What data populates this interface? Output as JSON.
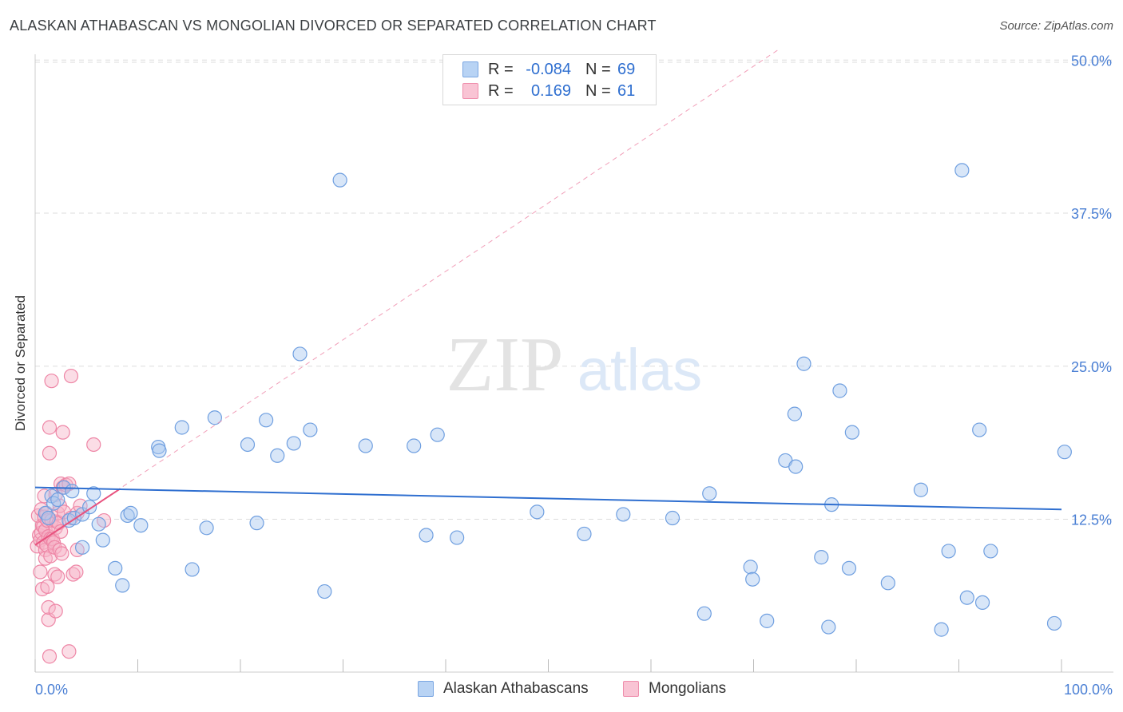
{
  "title": "ALASKAN ATHABASCAN VS MONGOLIAN DIVORCED OR SEPARATED CORRELATION CHART",
  "source": "Source: ZipAtlas.com",
  "watermark": {
    "zip": "ZIP",
    "atlas": "atlas"
  },
  "legend": {
    "rows": [
      {
        "r_label": "R =",
        "r_value": "-0.084",
        "n_label": "N =",
        "n_value": "69"
      },
      {
        "r_label": "R =",
        "r_value": "0.169",
        "n_label": "N =",
        "n_value": "61"
      }
    ]
  },
  "bottom_legend": {
    "series1": "Alaskan Athabascans",
    "series2": "Mongolians"
  },
  "chart_data": {
    "type": "scatter",
    "title": "ALASKAN ATHABASCAN VS MONGOLIAN DIVORCED OR SEPARATED CORRELATION CHART",
    "xlabel": "",
    "ylabel": "Divorced or Separated",
    "xlim": [
      0,
      100
    ],
    "ylim": [
      0,
      52
    ],
    "x_tick_labels": [
      "0.0%",
      "100.0%"
    ],
    "y_ticks": [
      12.5,
      25.0,
      37.5,
      50.0
    ],
    "y_tick_labels": [
      "12.5%",
      "25.0%",
      "37.5%",
      "50.0%"
    ],
    "grid": true,
    "colors": {
      "blue_fill": "#a9c8f0",
      "blue_stroke": "#6f9fe0",
      "blue_line": "#2f6fd0",
      "pink_fill": "#f7b3c8",
      "pink_stroke": "#ee86a6",
      "pink_line": "#e8527e",
      "axis_text": "#4a7fd4",
      "grid": "#dddddd"
    },
    "series": [
      {
        "name": "Alaskan Athabascans",
        "r": -0.084,
        "n": 69,
        "trend": {
          "x": [
            0,
            100
          ],
          "y": [
            15.1,
            13.3
          ]
        },
        "points": [
          [
            1.0,
            13.0
          ],
          [
            1.3,
            12.6
          ],
          [
            1.6,
            14.4
          ],
          [
            1.8,
            13.8
          ],
          [
            2.2,
            14.1
          ],
          [
            2.8,
            15.1
          ],
          [
            3.3,
            12.4
          ],
          [
            3.6,
            14.8
          ],
          [
            3.8,
            12.6
          ],
          [
            4.6,
            12.9
          ],
          [
            4.6,
            10.2
          ],
          [
            5.3,
            13.5
          ],
          [
            5.7,
            14.6
          ],
          [
            6.2,
            12.1
          ],
          [
            6.6,
            10.8
          ],
          [
            7.8,
            8.5
          ],
          [
            8.5,
            7.1
          ],
          [
            9.0,
            12.8
          ],
          [
            9.3,
            13.0
          ],
          [
            10.3,
            12.0
          ],
          [
            12.0,
            18.4
          ],
          [
            12.1,
            18.1
          ],
          [
            14.3,
            20.0
          ],
          [
            15.3,
            8.4
          ],
          [
            16.7,
            11.8
          ],
          [
            17.5,
            20.8
          ],
          [
            20.7,
            18.6
          ],
          [
            21.6,
            12.2
          ],
          [
            22.5,
            20.6
          ],
          [
            23.6,
            17.7
          ],
          [
            25.2,
            18.7
          ],
          [
            25.8,
            26.0
          ],
          [
            26.8,
            19.8
          ],
          [
            28.2,
            6.6
          ],
          [
            29.7,
            40.2
          ],
          [
            32.2,
            18.5
          ],
          [
            36.9,
            18.5
          ],
          [
            38.1,
            11.2
          ],
          [
            39.2,
            19.4
          ],
          [
            41.1,
            11.0
          ],
          [
            48.9,
            13.1
          ],
          [
            53.5,
            11.3
          ],
          [
            57.3,
            12.9
          ],
          [
            62.1,
            12.6
          ],
          [
            65.2,
            4.8
          ],
          [
            65.7,
            14.6
          ],
          [
            69.7,
            8.6
          ],
          [
            69.9,
            7.6
          ],
          [
            71.3,
            4.2
          ],
          [
            73.1,
            17.3
          ],
          [
            74.0,
            21.1
          ],
          [
            74.1,
            16.8
          ],
          [
            74.9,
            25.2
          ],
          [
            76.6,
            9.4
          ],
          [
            77.3,
            3.7
          ],
          [
            77.6,
            13.7
          ],
          [
            78.4,
            23.0
          ],
          [
            79.3,
            8.5
          ],
          [
            79.6,
            19.6
          ],
          [
            83.1,
            7.3
          ],
          [
            86.3,
            14.9
          ],
          [
            88.3,
            3.5
          ],
          [
            89.0,
            9.9
          ],
          [
            90.3,
            41.0
          ],
          [
            90.8,
            6.1
          ],
          [
            92.0,
            19.8
          ],
          [
            92.3,
            5.7
          ],
          [
            93.1,
            9.9
          ],
          [
            99.3,
            4.0
          ],
          [
            100.3,
            18.0
          ]
        ]
      },
      {
        "name": "Mongolians",
        "r": 0.169,
        "n": 61,
        "trend": {
          "x": [
            0,
            8.3
          ],
          "y": [
            10.4,
            15.0
          ]
        },
        "extrapolation": {
          "x": [
            0,
            72.5
          ],
          "y": [
            10.4,
            50.9
          ]
        },
        "points": [
          [
            0.2,
            10.3
          ],
          [
            0.3,
            12.8
          ],
          [
            0.4,
            11.2
          ],
          [
            0.5,
            8.2
          ],
          [
            0.5,
            10.8
          ],
          [
            0.6,
            13.3
          ],
          [
            0.6,
            11.4
          ],
          [
            0.7,
            6.8
          ],
          [
            0.7,
            12.0
          ],
          [
            0.8,
            10.6
          ],
          [
            0.8,
            11.9
          ],
          [
            0.9,
            14.4
          ],
          [
            0.9,
            12.7
          ],
          [
            1.0,
            10.0
          ],
          [
            1.0,
            9.3
          ],
          [
            1.0,
            11.6
          ],
          [
            1.1,
            13.0
          ],
          [
            1.1,
            10.4
          ],
          [
            1.2,
            7.0
          ],
          [
            1.2,
            12.4
          ],
          [
            1.3,
            11.1
          ],
          [
            1.3,
            4.3
          ],
          [
            1.3,
            5.3
          ],
          [
            1.4,
            17.9
          ],
          [
            1.4,
            1.3
          ],
          [
            1.4,
            20.0
          ],
          [
            1.5,
            10.9
          ],
          [
            1.5,
            9.5
          ],
          [
            1.6,
            23.8
          ],
          [
            1.6,
            12.4
          ],
          [
            1.7,
            10.9
          ],
          [
            1.8,
            10.6
          ],
          [
            1.9,
            8.0
          ],
          [
            1.9,
            10.2
          ],
          [
            2.0,
            5.0
          ],
          [
            2.0,
            11.8
          ],
          [
            2.0,
            14.5
          ],
          [
            2.1,
            12.3
          ],
          [
            2.2,
            7.8
          ],
          [
            2.2,
            13.0
          ],
          [
            2.3,
            12.2
          ],
          [
            2.4,
            10.0
          ],
          [
            2.4,
            13.6
          ],
          [
            2.5,
            11.5
          ],
          [
            2.5,
            15.4
          ],
          [
            2.6,
            9.7
          ],
          [
            2.7,
            15.1
          ],
          [
            2.7,
            19.6
          ],
          [
            2.8,
            13.1
          ],
          [
            3.0,
            15.3
          ],
          [
            3.3,
            15.4
          ],
          [
            3.3,
            1.7
          ],
          [
            3.5,
            24.2
          ],
          [
            3.5,
            12.6
          ],
          [
            3.7,
            8.0
          ],
          [
            4.0,
            8.2
          ],
          [
            4.1,
            10.0
          ],
          [
            4.1,
            13.0
          ],
          [
            4.4,
            13.6
          ],
          [
            5.7,
            18.6
          ],
          [
            6.7,
            12.4
          ]
        ]
      }
    ]
  }
}
